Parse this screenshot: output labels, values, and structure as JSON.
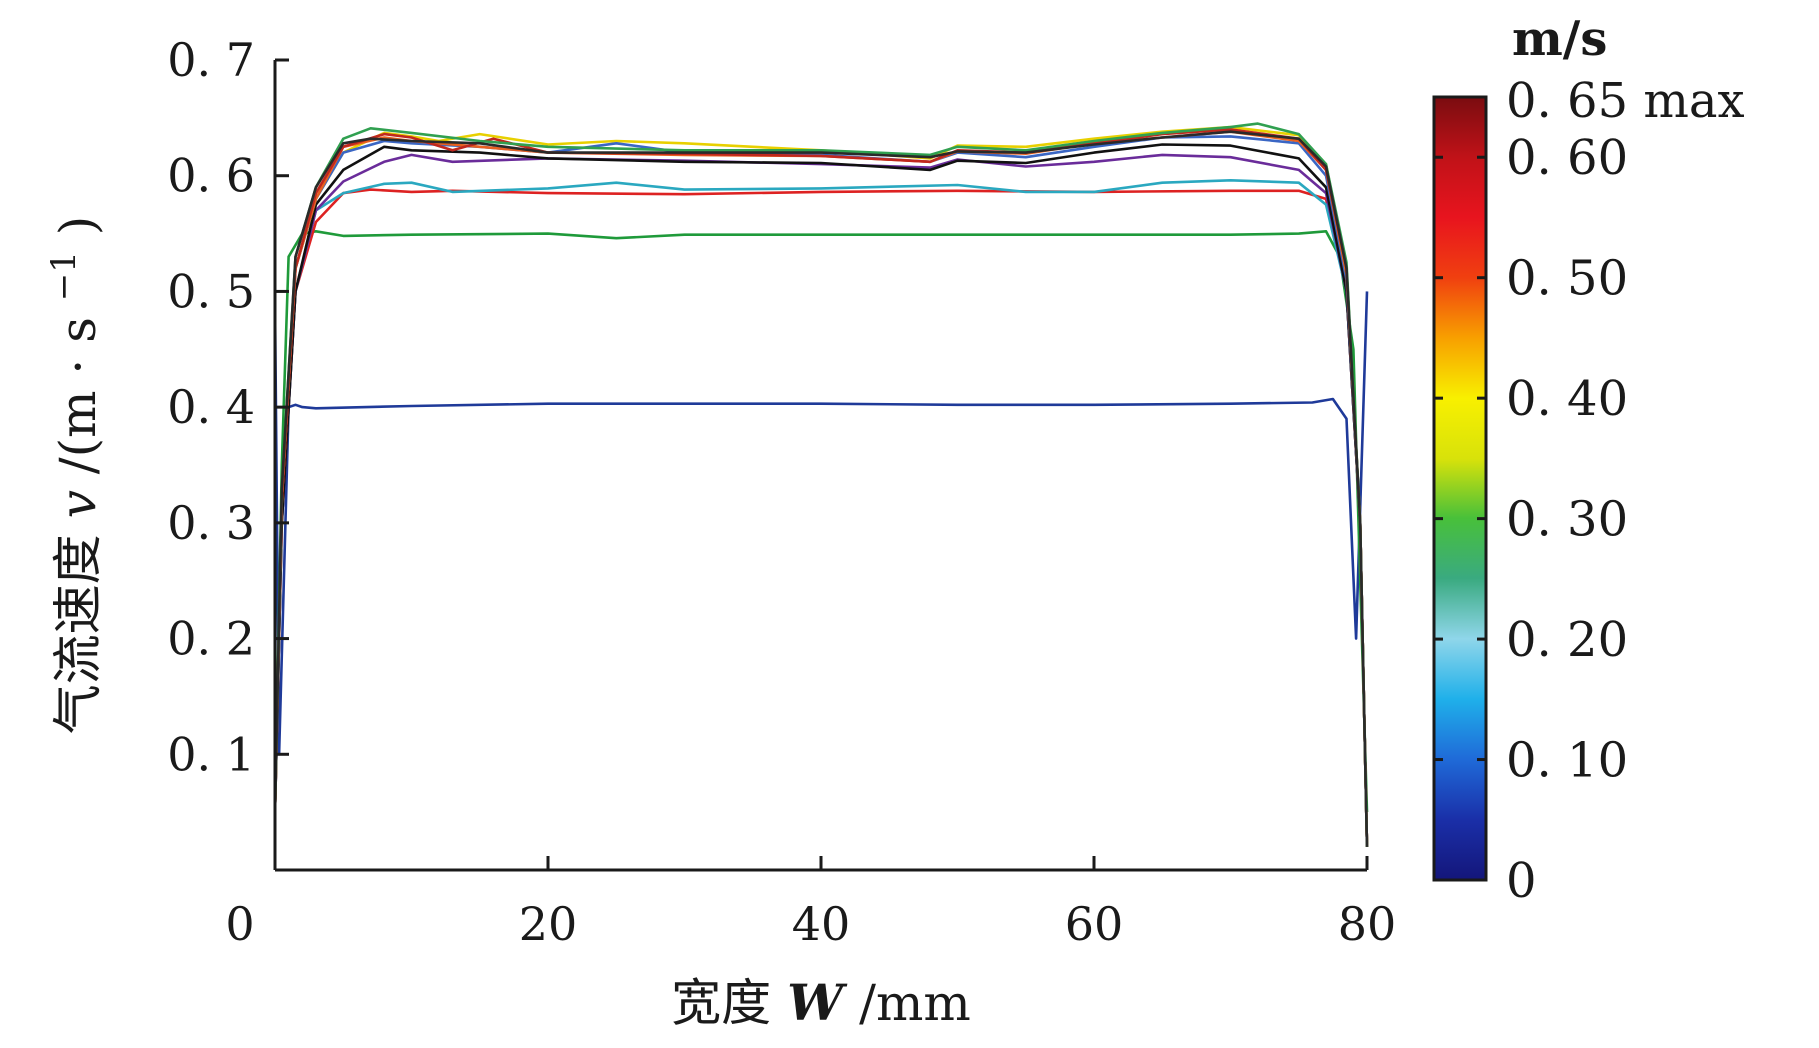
{
  "chart_data": {
    "type": "line",
    "xlabel_prefix": "宽度",
    "xlabel_var": "W",
    "xlabel_unit": "/mm",
    "ylabel_prefix": "气流速度",
    "ylabel_var": "v",
    "ylabel_unit": "/(m · s",
    "ylabel_exp": "−1",
    "ylabel_close": ")",
    "xlim": [
      0,
      80
    ],
    "ylim": [
      0,
      0.7
    ],
    "xticks": [
      0,
      20,
      40,
      60,
      80
    ],
    "xtick_labels": [
      "0",
      "20",
      "40",
      "60",
      "80"
    ],
    "yticks": [
      0.1,
      0.2,
      0.3,
      0.4,
      0.5,
      0.6,
      0.7
    ],
    "ytick_labels": [
      "0. 1",
      "0. 2",
      "0. 3",
      "0. 4",
      "0. 5",
      "0. 6",
      "0. 7"
    ],
    "series": [
      {
        "color": "#1f3a99",
        "x": [
          0,
          0.3,
          1,
          1.5,
          2,
          3,
          10,
          20,
          30,
          40,
          50,
          60,
          70,
          76,
          77.5,
          78.5,
          79.2,
          80
        ],
        "y": [
          0.49,
          0.1,
          0.4,
          0.402,
          0.4,
          0.399,
          0.401,
          0.403,
          0.403,
          0.403,
          0.402,
          0.402,
          0.403,
          0.404,
          0.407,
          0.39,
          0.2,
          0.5
        ]
      },
      {
        "color": "#1f9a3a",
        "x": [
          0,
          0.5,
          1,
          2,
          3,
          5,
          10,
          20,
          25,
          30,
          40,
          50,
          60,
          70,
          75,
          77,
          78,
          79,
          80
        ],
        "y": [
          0.05,
          0.35,
          0.53,
          0.55,
          0.552,
          0.548,
          0.549,
          0.55,
          0.546,
          0.549,
          0.549,
          0.549,
          0.549,
          0.549,
          0.55,
          0.552,
          0.53,
          0.45,
          0.05
        ]
      },
      {
        "color": "#dd2222",
        "x": [
          0,
          0.5,
          1.5,
          3,
          5,
          7,
          10,
          13,
          20,
          30,
          40,
          50,
          60,
          70,
          75,
          77,
          78.5,
          79.5,
          80
        ],
        "y": [
          0.05,
          0.3,
          0.5,
          0.56,
          0.585,
          0.588,
          0.586,
          0.587,
          0.585,
          0.584,
          0.586,
          0.587,
          0.586,
          0.587,
          0.587,
          0.58,
          0.5,
          0.3,
          0.02
        ]
      },
      {
        "color": "#2aa8c0",
        "x": [
          0,
          0.5,
          1.5,
          3,
          5,
          8,
          10,
          13,
          20,
          25,
          30,
          40,
          50,
          55,
          60,
          65,
          70,
          75,
          77,
          78.5,
          79.5,
          80
        ],
        "y": [
          0.05,
          0.3,
          0.5,
          0.57,
          0.585,
          0.593,
          0.594,
          0.586,
          0.589,
          0.594,
          0.588,
          0.589,
          0.592,
          0.586,
          0.586,
          0.594,
          0.596,
          0.594,
          0.575,
          0.5,
          0.3,
          0.02
        ]
      },
      {
        "color": "#6a2c9a",
        "x": [
          0,
          0.5,
          1.5,
          3,
          5,
          8,
          10,
          13,
          20,
          30,
          40,
          48,
          50,
          55,
          60,
          65,
          70,
          75,
          77,
          78.5,
          79.5,
          80
        ],
        "y": [
          0.05,
          0.3,
          0.5,
          0.57,
          0.595,
          0.612,
          0.618,
          0.612,
          0.615,
          0.613,
          0.61,
          0.607,
          0.614,
          0.608,
          0.612,
          0.618,
          0.616,
          0.605,
          0.585,
          0.5,
          0.3,
          0.02
        ]
      },
      {
        "color": "#111111",
        "x": [
          0,
          0.5,
          1.5,
          3,
          5,
          8,
          10,
          15,
          20,
          30,
          40,
          48,
          50,
          55,
          60,
          65,
          70,
          75,
          77,
          78.5,
          79.5,
          80
        ],
        "y": [
          0.05,
          0.3,
          0.5,
          0.575,
          0.605,
          0.625,
          0.622,
          0.62,
          0.615,
          0.612,
          0.611,
          0.605,
          0.613,
          0.611,
          0.62,
          0.627,
          0.626,
          0.615,
          0.59,
          0.5,
          0.3,
          0.02
        ]
      },
      {
        "color": "#e8d000",
        "x": [
          0,
          0.5,
          1.5,
          3,
          5,
          8,
          10,
          12,
          15,
          20,
          25,
          30,
          40,
          48,
          50,
          55,
          60,
          65,
          70,
          75,
          77,
          78.5,
          79.5,
          80
        ],
        "y": [
          0.05,
          0.32,
          0.52,
          0.58,
          0.62,
          0.637,
          0.634,
          0.63,
          0.636,
          0.627,
          0.63,
          0.628,
          0.622,
          0.615,
          0.626,
          0.625,
          0.632,
          0.638,
          0.642,
          0.635,
          0.61,
          0.52,
          0.3,
          0.02
        ]
      },
      {
        "color": "#3a66c4",
        "x": [
          0,
          0.5,
          1.5,
          3,
          5,
          8,
          10,
          15,
          20,
          25,
          30,
          40,
          48,
          50,
          55,
          60,
          65,
          70,
          75,
          77,
          78.5,
          79.5,
          80
        ],
        "y": [
          0.05,
          0.32,
          0.52,
          0.58,
          0.62,
          0.63,
          0.628,
          0.625,
          0.62,
          0.628,
          0.62,
          0.618,
          0.612,
          0.62,
          0.616,
          0.625,
          0.633,
          0.634,
          0.628,
          0.6,
          0.51,
          0.3,
          0.02
        ]
      },
      {
        "color": "#e86020",
        "x": [
          0,
          0.5,
          1.5,
          3,
          5,
          8,
          10,
          15,
          20,
          30,
          40,
          48,
          50,
          55,
          60,
          65,
          70,
          75,
          77,
          78.5,
          79.5,
          80
        ],
        "y": [
          0.05,
          0.32,
          0.52,
          0.58,
          0.625,
          0.633,
          0.63,
          0.625,
          0.62,
          0.618,
          0.617,
          0.612,
          0.621,
          0.619,
          0.628,
          0.633,
          0.638,
          0.63,
          0.605,
          0.515,
          0.3,
          0.02
        ]
      },
      {
        "color": "#c0281e",
        "x": [
          0,
          0.5,
          1.5,
          3,
          5,
          8,
          10,
          13,
          16,
          20,
          30,
          40,
          48,
          50,
          55,
          60,
          65,
          70,
          75,
          77,
          78.5,
          79.5,
          80
        ],
        "y": [
          0.05,
          0.32,
          0.52,
          0.585,
          0.625,
          0.636,
          0.633,
          0.622,
          0.632,
          0.62,
          0.619,
          0.617,
          0.612,
          0.622,
          0.62,
          0.628,
          0.636,
          0.64,
          0.632,
          0.605,
          0.52,
          0.3,
          0.02
        ]
      },
      {
        "color": "#30a050",
        "x": [
          0,
          0.5,
          1.5,
          3,
          5,
          7,
          10,
          15,
          20,
          30,
          40,
          48,
          50,
          55,
          60,
          65,
          70,
          72,
          75,
          77,
          78.5,
          79.5,
          80
        ],
        "y": [
          0.05,
          0.33,
          0.53,
          0.59,
          0.632,
          0.641,
          0.637,
          0.63,
          0.625,
          0.622,
          0.622,
          0.618,
          0.625,
          0.622,
          0.63,
          0.637,
          0.642,
          0.645,
          0.636,
          0.61,
          0.525,
          0.3,
          0.02
        ]
      },
      {
        "color": "#2a2a2a",
        "x": [
          0,
          0.5,
          1.5,
          3,
          5,
          7,
          10,
          15,
          20,
          30,
          40,
          48,
          50,
          55,
          60,
          65,
          70,
          75,
          77,
          78.5,
          79.5,
          80
        ],
        "y": [
          0.05,
          0.33,
          0.53,
          0.59,
          0.628,
          0.632,
          0.63,
          0.628,
          0.62,
          0.62,
          0.62,
          0.616,
          0.621,
          0.62,
          0.627,
          0.633,
          0.638,
          0.632,
          0.608,
          0.52,
          0.3,
          0.02
        ]
      }
    ],
    "colorbar": {
      "unit": "m/s",
      "min": 0,
      "max": 0.65,
      "ticks": [
        0,
        0.1,
        0.2,
        0.3,
        0.4,
        0.5,
        0.6
      ],
      "tick_labels": [
        "0",
        "0. 10",
        "0. 20",
        "0. 30",
        "0. 40",
        "0. 50",
        "0. 60"
      ],
      "max_label": "0. 65 max",
      "stops": [
        "#14167a",
        "#1a2fa8",
        "#1f6ad8",
        "#1fb0ea",
        "#8fd6ea",
        "#3aaa80",
        "#48c03a",
        "#d8e20a",
        "#f8f000",
        "#f8a000",
        "#f04010",
        "#e8141e",
        "#c01218",
        "#7a0c10"
      ]
    }
  }
}
